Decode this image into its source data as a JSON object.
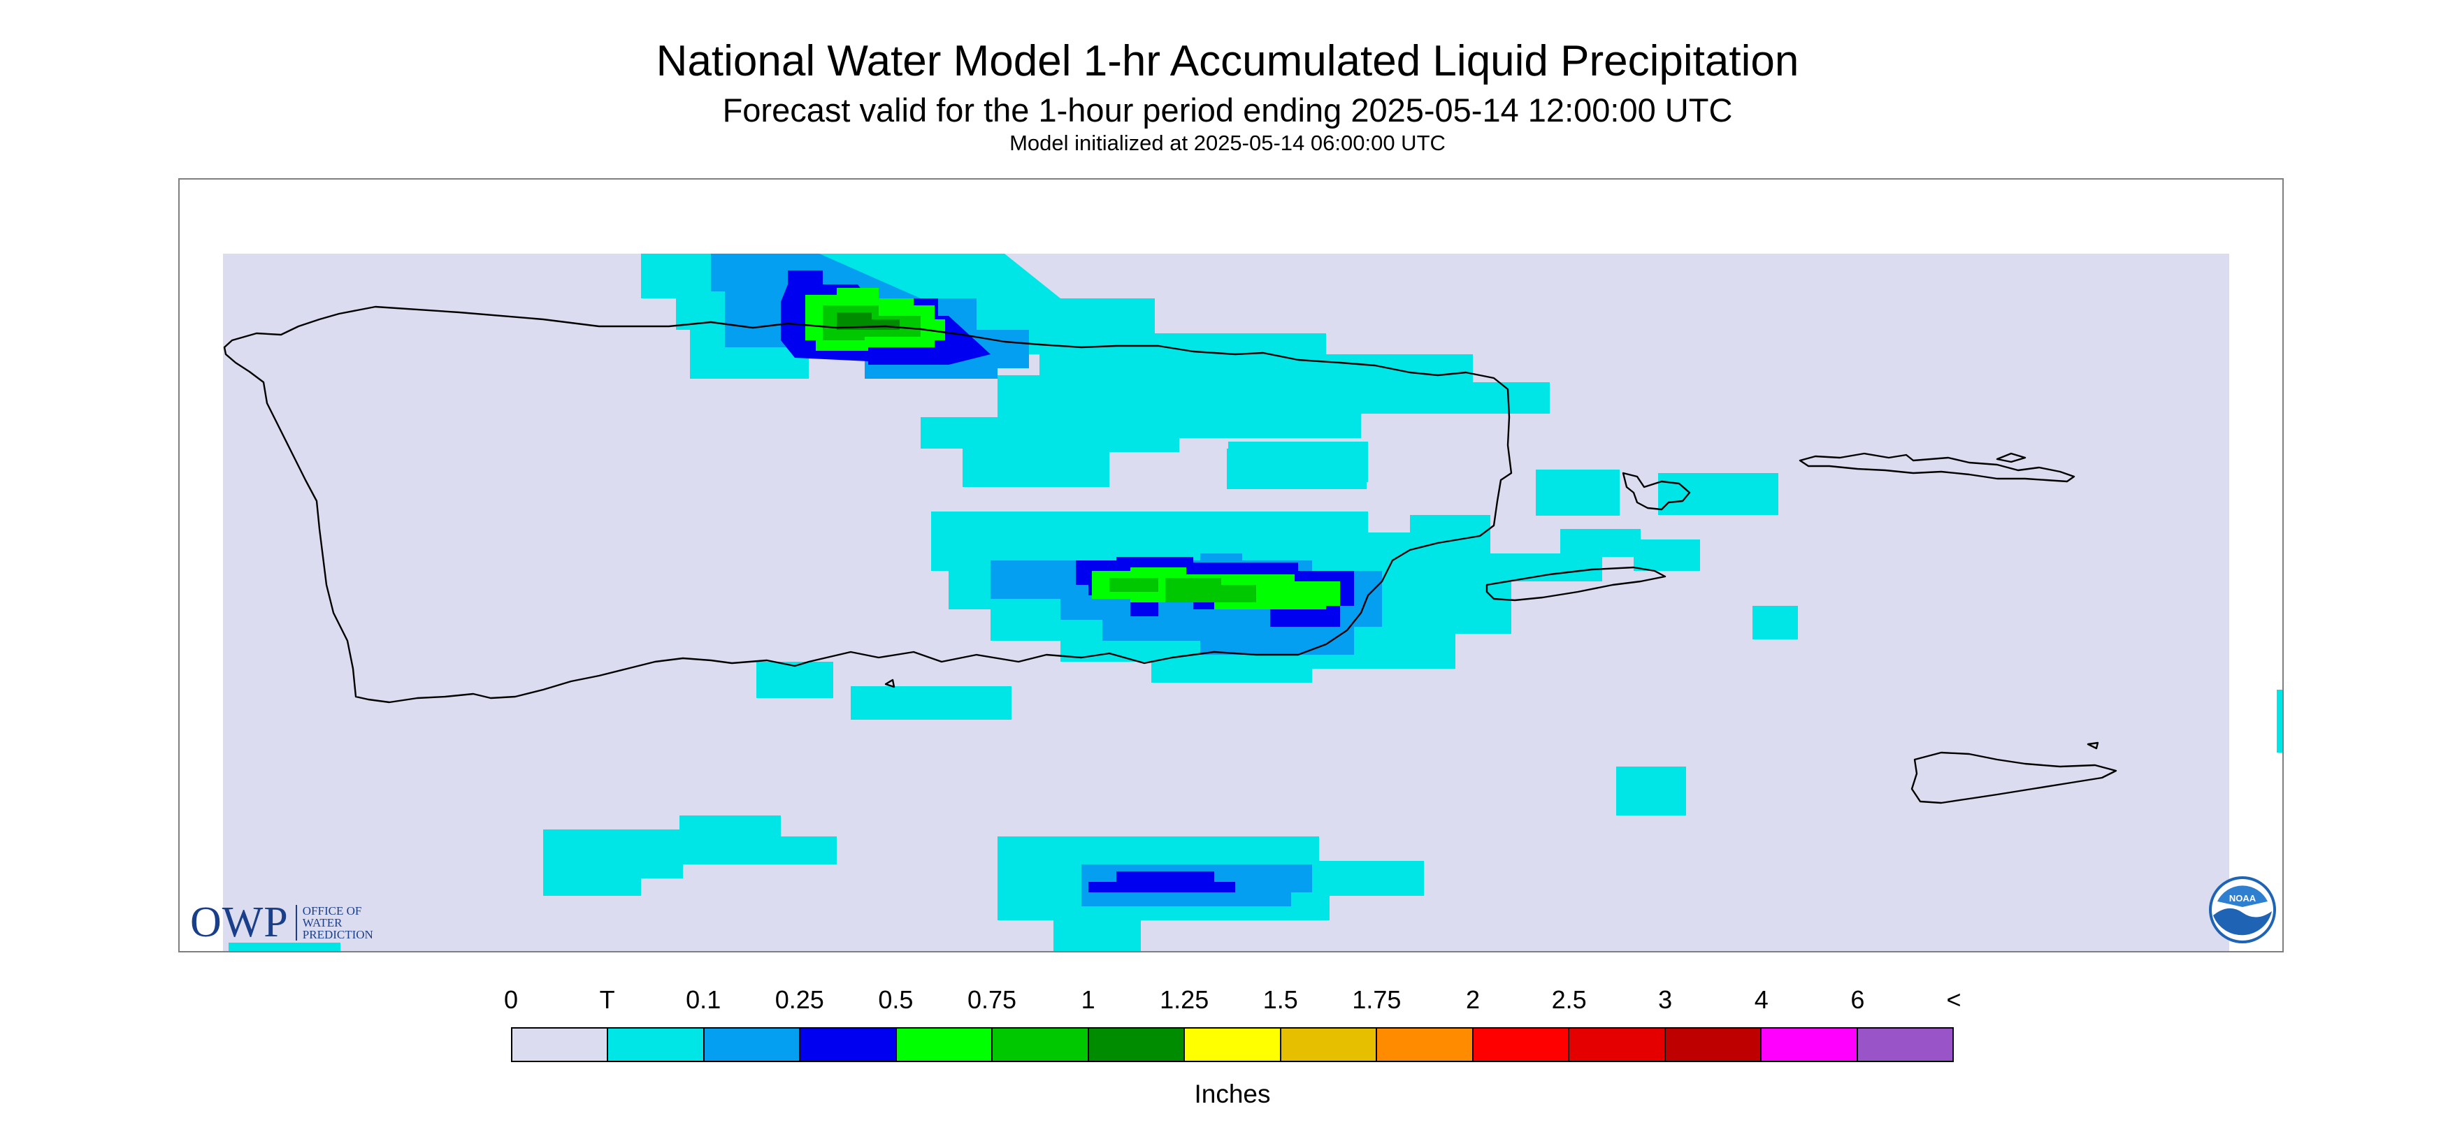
{
  "header": {
    "title": "National Water Model 1-hr Accumulated Liquid Precipitation",
    "subtitle": "Forecast valid for the 1-hour period ending 2025-05-14 12:00:00 UTC",
    "init_line": "Model initialized at 2025-05-14 06:00:00 UTC"
  },
  "logos": {
    "owp_text": "OWP",
    "owp_subtext": [
      "OFFICE OF",
      "WATER",
      "PREDICTION"
    ],
    "noaa_text": "NOAA"
  },
  "legend": {
    "labels": [
      "0",
      "T",
      "0.1",
      "0.25",
      "0.5",
      "0.75",
      "1",
      "1.25",
      "1.5",
      "1.75",
      "2",
      "2.5",
      "3",
      "4",
      "6",
      "<"
    ],
    "colors": [
      "#dcdcf0",
      "#00e5e5",
      "#059ff2",
      "#0000f0",
      "#00ff00",
      "#00c800",
      "#008c00",
      "#ffff00",
      "#e5bf00",
      "#ff8c00",
      "#ff0000",
      "#e50000",
      "#bf0000",
      "#ff00ff",
      "#9955c8"
    ],
    "units": "Inches"
  },
  "map_colors": {
    "background": "#dcdcf0",
    "trace": "#00e5e5",
    "c010": "#059ff2",
    "c025": "#0000f0",
    "c050": "#00ff00",
    "c075": "#00c800",
    "c100": "#008c00",
    "coast": "#000000"
  }
}
